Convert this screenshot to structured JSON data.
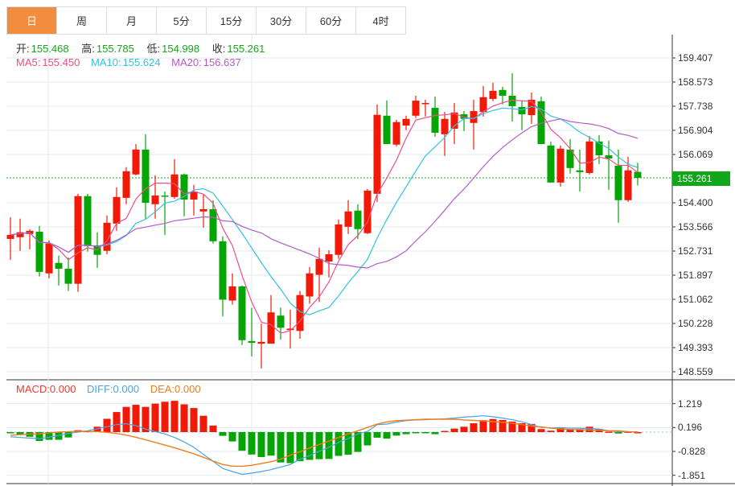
{
  "tabs": [
    "日",
    "周",
    "月",
    "5分",
    "15分",
    "30分",
    "60分",
    "4时"
  ],
  "active_tab": 0,
  "ohlc": {
    "open_label": "开:",
    "open": "155.468",
    "high_label": "高:",
    "high": "155.785",
    "low_label": "低:",
    "low": "154.998",
    "close_label": "收:",
    "close": "155.261"
  },
  "ma": {
    "ma5_label": "MA5:",
    "ma5": "155.450",
    "ma10_label": "MA10:",
    "ma10": "155.624",
    "ma20_label": "MA20:",
    "ma20": "156.637"
  },
  "macd_legend": {
    "macd": "MACD:0.000",
    "diff": "DIFF:0.000",
    "dea": "DEA:0.000"
  },
  "current_price": "155.261",
  "colors": {
    "up": "#f21a06",
    "down": "#06a506",
    "ma5": "#ee4f86",
    "ma10": "#33c3de",
    "ma20": "#b45bc8",
    "diff": "#4aa3e8",
    "dea": "#f07c20",
    "current": "#10a81a"
  },
  "chart_data": {
    "type": "candlestick",
    "price_axis": {
      "ticks": [
        "159.407",
        "158.573",
        "157.738",
        "156.904",
        "156.069",
        "154.400",
        "153.566",
        "152.731",
        "151.897",
        "151.062",
        "150.228",
        "149.393",
        "148.559"
      ],
      "range": [
        148.559,
        159.407
      ]
    },
    "macd_axis": {
      "ticks": [
        "1.219",
        "0.196",
        "-0.828",
        "-1.851"
      ]
    },
    "candles": [
      [
        153.15,
        153.9,
        152.43,
        153.29
      ],
      [
        153.21,
        153.85,
        152.74,
        153.38
      ],
      [
        153.32,
        153.49,
        152.79,
        153.43
      ],
      [
        153.4,
        153.6,
        151.85,
        152.01
      ],
      [
        151.96,
        153.1,
        151.79,
        152.99
      ],
      [
        152.32,
        152.57,
        151.54,
        152.12
      ],
      [
        152.12,
        152.51,
        151.35,
        151.6
      ],
      [
        151.6,
        154.71,
        151.32,
        154.63
      ],
      [
        154.63,
        154.71,
        152.71,
        152.9
      ],
      [
        152.93,
        153.38,
        152.15,
        152.6
      ],
      [
        152.74,
        153.96,
        152.62,
        153.71
      ],
      [
        153.68,
        154.93,
        153.43,
        154.6
      ],
      [
        154.57,
        155.63,
        154.35,
        155.49
      ],
      [
        155.38,
        156.43,
        155.35,
        156.24
      ],
      [
        156.24,
        156.77,
        153.85,
        154.4
      ],
      [
        154.35,
        155.35,
        153.85,
        154.65
      ],
      [
        154.65,
        154.79,
        153.29,
        154.63
      ],
      [
        154.6,
        155.91,
        154.54,
        155.38
      ],
      [
        155.38,
        155.41,
        153.93,
        154.51
      ],
      [
        154.51,
        155.02,
        153.96,
        154.79
      ],
      [
        154.1,
        154.68,
        153.54,
        154.18
      ],
      [
        154.18,
        154.49,
        152.99,
        153.07
      ],
      [
        153.07,
        153.24,
        150.47,
        151.05
      ],
      [
        151.02,
        151.96,
        150.88,
        151.51
      ],
      [
        151.51,
        151.54,
        149.48,
        149.65
      ],
      [
        149.62,
        150.77,
        149.09,
        149.56
      ],
      [
        149.53,
        150.22,
        148.67,
        149.59
      ],
      [
        149.53,
        151.21,
        149.53,
        150.61
      ],
      [
        150.5,
        150.78,
        149.67,
        150.08
      ],
      [
        150.0,
        150.7,
        149.36,
        150.05
      ],
      [
        149.97,
        151.35,
        149.7,
        151.21
      ],
      [
        151.16,
        152.18,
        150.91,
        151.96
      ],
      [
        151.91,
        152.85,
        150.97,
        152.46
      ],
      [
        152.37,
        152.76,
        151.82,
        152.62
      ],
      [
        152.6,
        153.82,
        152.46,
        153.65
      ],
      [
        153.57,
        154.49,
        153.32,
        154.1
      ],
      [
        154.13,
        154.35,
        153.15,
        153.49
      ],
      [
        153.35,
        154.88,
        153.32,
        154.82
      ],
      [
        154.71,
        157.8,
        154.43,
        157.44
      ],
      [
        157.41,
        157.94,
        156.52,
        156.43
      ],
      [
        156.41,
        157.27,
        156.35,
        157.19
      ],
      [
        157.07,
        157.41,
        156.91,
        157.3
      ],
      [
        157.41,
        158.1,
        157.33,
        157.93
      ],
      [
        157.82,
        157.96,
        157.38,
        157.85
      ],
      [
        157.68,
        158.07,
        156.68,
        156.82
      ],
      [
        156.77,
        157.54,
        156.02,
        157.3
      ],
      [
        156.96,
        157.85,
        156.43,
        157.52
      ],
      [
        157.46,
        157.57,
        156.88,
        157.3
      ],
      [
        157.16,
        157.96,
        156.24,
        157.57
      ],
      [
        157.54,
        158.44,
        157.38,
        158.05
      ],
      [
        157.99,
        158.55,
        157.91,
        158.27
      ],
      [
        158.3,
        158.41,
        157.8,
        158.1
      ],
      [
        158.1,
        158.88,
        157.21,
        157.74
      ],
      [
        157.71,
        157.94,
        156.91,
        157.46
      ],
      [
        157.43,
        158.21,
        157.13,
        157.96
      ],
      [
        157.91,
        158.07,
        156.49,
        156.43
      ],
      [
        156.38,
        156.52,
        155.1,
        155.1
      ],
      [
        155.1,
        156.38,
        154.96,
        156.27
      ],
      [
        156.24,
        156.6,
        155.41,
        155.6
      ],
      [
        155.52,
        156.24,
        154.79,
        155.46
      ],
      [
        155.43,
        156.71,
        155.38,
        156.52
      ],
      [
        156.52,
        156.74,
        155.74,
        156.04
      ],
      [
        156.04,
        156.55,
        154.85,
        155.93
      ],
      [
        155.68,
        156.24,
        153.71,
        154.49
      ],
      [
        154.49,
        155.99,
        154.43,
        155.52
      ],
      [
        155.468,
        155.785,
        154.998,
        155.261
      ]
    ],
    "macd_hist": [
      -0.05,
      -0.1,
      -0.2,
      -0.38,
      -0.33,
      -0.33,
      -0.23,
      0.08,
      0.05,
      0.23,
      0.57,
      0.86,
      1.08,
      1.17,
      1.08,
      1.22,
      1.3,
      1.34,
      1.19,
      1.03,
      0.7,
      0.28,
      -0.16,
      -0.4,
      -0.8,
      -0.96,
      -1.07,
      -1.01,
      -1.3,
      -1.33,
      -1.25,
      -1.19,
      -1.16,
      -1.15,
      -1.02,
      -0.97,
      -0.85,
      -0.57,
      -0.24,
      -0.28,
      -0.15,
      -0.09,
      -0.03,
      -0.05,
      -0.09,
      0.05,
      0.15,
      0.23,
      0.38,
      0.51,
      0.56,
      0.52,
      0.45,
      0.38,
      0.35,
      0.13,
      0.06,
      0.18,
      0.13,
      0.13,
      0.23,
      0.13,
      0.02,
      -0.06,
      0.02,
      0.0
    ],
    "diff": [
      -0.2,
      -0.23,
      -0.26,
      -0.28,
      -0.22,
      -0.14,
      -0.06,
      0.0,
      0.06,
      0.14,
      0.23,
      0.32,
      0.36,
      0.28,
      0.13,
      0.02,
      -0.08,
      -0.23,
      -0.42,
      -0.65,
      -0.96,
      -1.25,
      -1.56,
      -1.69,
      -1.81,
      -1.76,
      -1.69,
      -1.61,
      -1.5,
      -1.39,
      -1.16,
      -1.01,
      -0.82,
      -0.65,
      -0.44,
      -0.28,
      -0.08,
      0.03,
      0.32,
      0.34,
      0.43,
      0.49,
      0.52,
      0.53,
      0.55,
      0.57,
      0.6,
      0.64,
      0.67,
      0.7,
      0.66,
      0.6,
      0.53,
      0.44,
      0.32,
      0.2,
      0.18,
      0.19,
      0.17,
      0.17,
      0.15,
      0.13,
      0.06,
      0.02,
      0.01,
      0.0
    ],
    "dea": [
      -0.14,
      -0.11,
      -0.09,
      -0.07,
      -0.03,
      0,
      0.02,
      0.03,
      0.03,
      0.02,
      -0.01,
      -0.06,
      -0.13,
      -0.22,
      -0.33,
      -0.44,
      -0.56,
      -0.67,
      -0.8,
      -0.93,
      -1.08,
      -1.24,
      -1.39,
      -1.46,
      -1.47,
      -1.42,
      -1.35,
      -1.27,
      -1.16,
      -0.99,
      -0.84,
      -0.68,
      -0.53,
      -0.39,
      -0.23,
      -0.08,
      0.06,
      0.2,
      0.34,
      0.43,
      0.49,
      0.51,
      0.53,
      0.55,
      0.55,
      0.55,
      0.55,
      0.52,
      0.5,
      0.48,
      0.45,
      0.42,
      0.38,
      0.32,
      0.26,
      0.22,
      0.17,
      0.14,
      0.11,
      0.1,
      0.09,
      0.08,
      0.06,
      0.05,
      0.02,
      0.01
    ]
  }
}
